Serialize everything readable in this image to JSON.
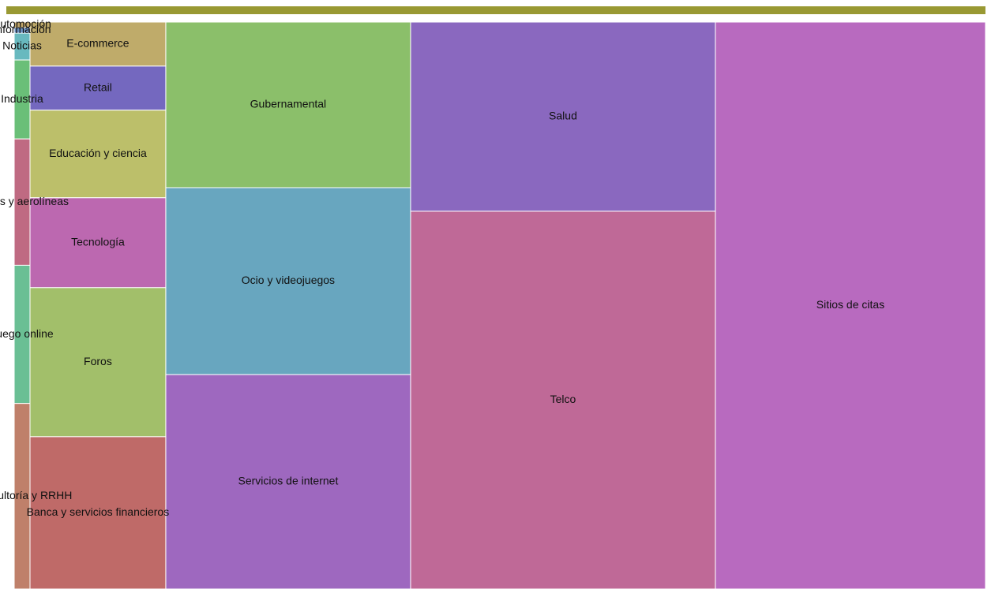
{
  "chart_data": {
    "type": "treemap",
    "categories": [
      "Sitios de citas",
      "Salud",
      "Telco",
      "Gubernamental",
      "Ocio y videojuegos",
      "Servicios de internet",
      "E-commerce",
      "Retail",
      "Educación y ciencia",
      "Tecnología",
      "Foros",
      "Banca y servicios financieros",
      "Automoción",
      "Información",
      "Noticias",
      "Industria",
      "Viajes y aerolíneas",
      "Juego online",
      "Consultoría y RRHH"
    ],
    "values": [
      245.9,
      92.6,
      184.9,
      65.1,
      73.5,
      84.3,
      9.6,
      9.6,
      19.1,
      19.6,
      32.5,
      33.2,
      0.14,
      0.14,
      0.68,
      2.0,
      3.2,
      3.5,
      4.7
    ],
    "colors": [
      "#b86abf",
      "#8a68bf",
      "#bf6997",
      "#8bbf6a",
      "#68a6bf",
      "#9e68bf",
      "#bfab6a",
      "#7468bf",
      "#bcbf6a",
      "#bc68b0",
      "#a2bf6a",
      "#bf6a68",
      "#bfa56a",
      "#6a8fbf",
      "#68b9bf",
      "#6abf78",
      "#bf6a82",
      "#6abf94",
      "#bf806a"
    ]
  }
}
